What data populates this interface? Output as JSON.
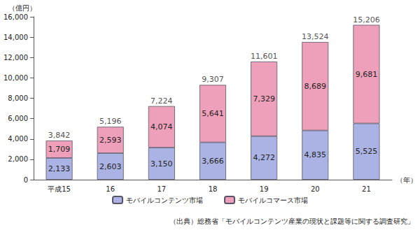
{
  "chart_data": {
    "type": "bar",
    "stacked": true,
    "data_labels": true,
    "grid": false,
    "legend": "bottom",
    "y_label": "（億円）",
    "x_label": "（年）",
    "source": "（出典）総務省「モバイルコンテンツ産業の現状と課題等に関する調査研究」",
    "categories": [
      "平成15",
      "16",
      "17",
      "18",
      "19",
      "20",
      "21"
    ],
    "series": [
      {
        "name": "モバイルコンテンツ市場",
        "color": "#aab3e3",
        "values": [
          2133,
          2603,
          3150,
          3666,
          4272,
          4835,
          5525
        ],
        "value_labels": [
          "2,133",
          "2,603",
          "3,150",
          "3,666",
          "4,272",
          "4,835",
          "5,525"
        ]
      },
      {
        "name": "モバイルコマース市場",
        "color": "#ee9fba",
        "values": [
          1709,
          2593,
          4074,
          5641,
          7329,
          8689,
          9681
        ],
        "value_labels": [
          "1,709",
          "2,593",
          "4,074",
          "5,641",
          "7,329",
          "8,689",
          "9,681"
        ]
      }
    ],
    "totals": [
      3842,
      5196,
      7224,
      9307,
      11601,
      13524,
      15206
    ],
    "total_labels": [
      "3,842",
      "5,196",
      "7,224",
      "9,307",
      "11,601",
      "13,524",
      "15,206"
    ],
    "ylim": [
      0,
      16000
    ],
    "yticks": [
      0,
      {
        "value": 2000,
        "label": "2,000"
      },
      {
        "value": 4000,
        "label": "4,000"
      },
      {
        "value": 6000,
        "label": "6,000"
      },
      {
        "value": 8000,
        "label": "8,000"
      },
      {
        "value": 10000,
        "label": "10,000"
      },
      {
        "value": 12000,
        "label": "12,000"
      },
      {
        "value": 14000,
        "label": "14,000"
      },
      {
        "value": 16000,
        "label": "16,000"
      }
    ]
  }
}
